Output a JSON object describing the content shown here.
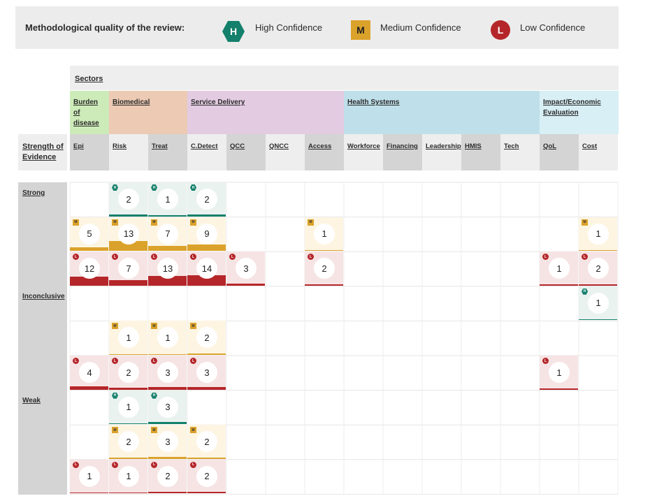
{
  "legend": {
    "title": "Methodological quality of the review:",
    "items": [
      {
        "code": "H",
        "label": "High Confidence"
      },
      {
        "code": "M",
        "label": "Medium Confidence"
      },
      {
        "code": "L",
        "label": "Low Confidence"
      }
    ]
  },
  "colors": {
    "H": "#14806b",
    "M": "#dba22b",
    "L": "#b5262a"
  },
  "sectors_title": "Sectors",
  "sectors": [
    {
      "label": "Burden of disease",
      "color": "#cdeab9"
    },
    {
      "label": "Biomedical",
      "color": "#eccab3"
    },
    {
      "label": "Service Delivery",
      "color": "#e3cbe2"
    },
    {
      "label": "Health Systems",
      "color": "#bfe0ea"
    },
    {
      "label": "Impact/Economic Evaluation",
      "color": "#d7eff5"
    }
  ],
  "row_header": "Strength of Evidence",
  "columns": [
    "Epi",
    "Risk",
    "Treat",
    "C.Detect",
    "QCC",
    "QNCC",
    "Access",
    "Workforce",
    "Financing",
    "Leadership",
    "HMIS",
    "Tech",
    "QoL",
    "Cost"
  ],
  "strength_groups": [
    "Strong",
    "Inconclusive",
    "Weak"
  ],
  "cells": [
    {
      "g": 0,
      "q": "H",
      "c": 1,
      "v": 2
    },
    {
      "g": 0,
      "q": "H",
      "c": 2,
      "v": 1
    },
    {
      "g": 0,
      "q": "H",
      "c": 3,
      "v": 2
    },
    {
      "g": 0,
      "q": "M",
      "c": 0,
      "v": 5
    },
    {
      "g": 0,
      "q": "M",
      "c": 1,
      "v": 13
    },
    {
      "g": 0,
      "q": "M",
      "c": 2,
      "v": 7
    },
    {
      "g": 0,
      "q": "M",
      "c": 3,
      "v": 9
    },
    {
      "g": 0,
      "q": "M",
      "c": 6,
      "v": 1
    },
    {
      "g": 0,
      "q": "M",
      "c": 13,
      "v": 1
    },
    {
      "g": 0,
      "q": "L",
      "c": 0,
      "v": 12
    },
    {
      "g": 0,
      "q": "L",
      "c": 1,
      "v": 7
    },
    {
      "g": 0,
      "q": "L",
      "c": 2,
      "v": 13
    },
    {
      "g": 0,
      "q": "L",
      "c": 3,
      "v": 14
    },
    {
      "g": 0,
      "q": "L",
      "c": 4,
      "v": 3
    },
    {
      "g": 0,
      "q": "L",
      "c": 6,
      "v": 2
    },
    {
      "g": 0,
      "q": "L",
      "c": 12,
      "v": 1
    },
    {
      "g": 0,
      "q": "L",
      "c": 13,
      "v": 2
    },
    {
      "g": 1,
      "q": "H",
      "c": 13,
      "v": 1
    },
    {
      "g": 1,
      "q": "M",
      "c": 1,
      "v": 1
    },
    {
      "g": 1,
      "q": "M",
      "c": 2,
      "v": 1
    },
    {
      "g": 1,
      "q": "M",
      "c": 3,
      "v": 2
    },
    {
      "g": 1,
      "q": "L",
      "c": 0,
      "v": 4
    },
    {
      "g": 1,
      "q": "L",
      "c": 1,
      "v": 2
    },
    {
      "g": 1,
      "q": "L",
      "c": 2,
      "v": 3
    },
    {
      "g": 1,
      "q": "L",
      "c": 3,
      "v": 3
    },
    {
      "g": 1,
      "q": "L",
      "c": 12,
      "v": 1
    },
    {
      "g": 2,
      "q": "H",
      "c": 1,
      "v": 1
    },
    {
      "g": 2,
      "q": "H",
      "c": 2,
      "v": 3
    },
    {
      "g": 2,
      "q": "M",
      "c": 1,
      "v": 2
    },
    {
      "g": 2,
      "q": "M",
      "c": 2,
      "v": 3
    },
    {
      "g": 2,
      "q": "M",
      "c": 3,
      "v": 2
    },
    {
      "g": 2,
      "q": "L",
      "c": 0,
      "v": 1
    },
    {
      "g": 2,
      "q": "L",
      "c": 1,
      "v": 1
    },
    {
      "g": 2,
      "q": "L",
      "c": 2,
      "v": 2
    },
    {
      "g": 2,
      "q": "L",
      "c": 3,
      "v": 2
    }
  ]
}
